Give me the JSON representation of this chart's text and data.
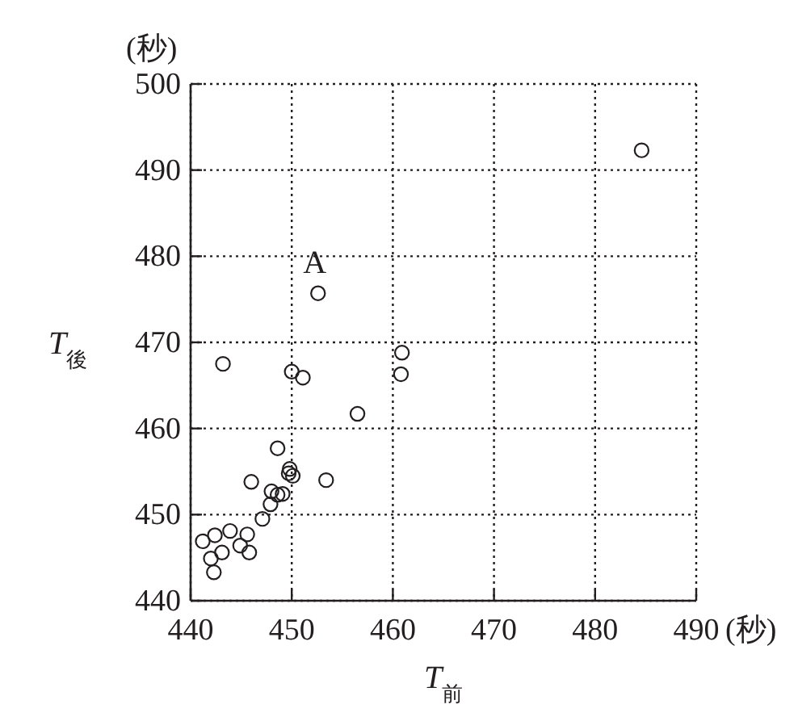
{
  "chart_data": {
    "type": "scatter",
    "xlabel": "T$_{前}$",
    "ylabel": "T$_{後}$",
    "annotations": [
      "(秒)",
      "(秒)",
      {
        "text": "A",
        "x": 452.6,
        "y": 475.8
      }
    ],
    "series": [
      {
        "color": "#231f20",
        "x": [
          484.6,
          452.6,
          443.2,
          450.0,
          451.1,
          460.9,
          460.8,
          456.5,
          448.6,
          449.8,
          449.7,
          450.1,
          453.4,
          446.0,
          448.0,
          448.6,
          449.1,
          447.1,
          447.9,
          443.9,
          445.6,
          442.4,
          444.9,
          443.1,
          445.8,
          442.3,
          441.2,
          442.0
        ],
        "values": [
          492.3,
          475.7,
          467.5,
          466.6,
          465.9,
          468.8,
          466.3,
          461.7,
          457.7,
          455.3,
          454.8,
          454.5,
          454.0,
          453.8,
          452.7,
          452.3,
          452.4,
          449.5,
          451.2,
          448.1,
          447.7,
          447.6,
          446.4,
          445.6,
          445.6,
          443.3,
          446.9,
          444.9
        ]
      }
    ],
    "xlim": [
      440,
      490
    ],
    "ylim": [
      440,
      500
    ],
    "xticks": [
      440,
      450,
      460,
      470,
      480,
      490
    ],
    "yticks": [
      440,
      450,
      460,
      470,
      480,
      490,
      500
    ],
    "grid": true,
    "marker": "circle"
  }
}
